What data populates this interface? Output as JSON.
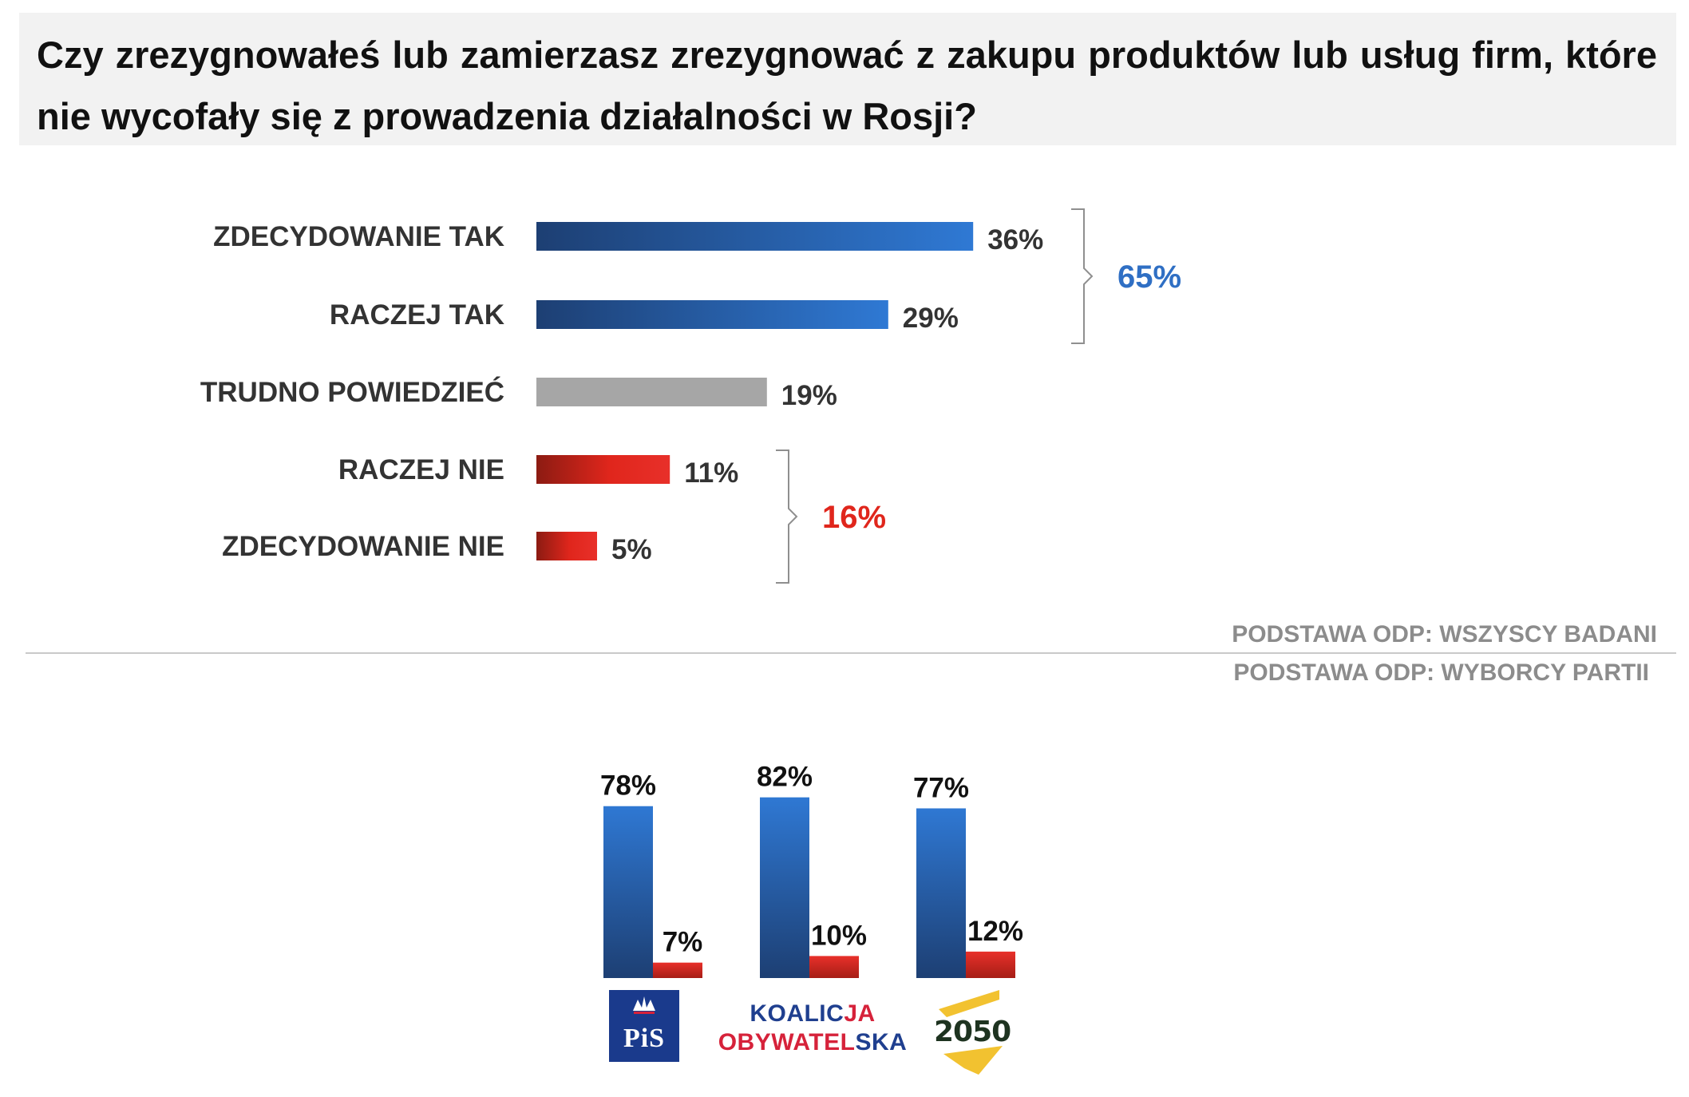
{
  "title": "Czy zrezygnowałeś lub zamierzasz zrezygnować z zakupu produktów lub usług firm, które nie wycofały się z prowadzenia działalności w Rosji?",
  "chart_data": [
    {
      "type": "bar",
      "orientation": "horizontal",
      "categories": [
        "ZDECYDOWANIE TAK",
        "RACZEJ TAK",
        "TRUDNO POWIEDZIEĆ",
        "RACZEJ NIE",
        "ZDECYDOWANIE NIE"
      ],
      "values": [
        36,
        29,
        19,
        11,
        5
      ],
      "value_labels": [
        "36%",
        "29%",
        "19%",
        "11%",
        "5%"
      ],
      "bar_colors": [
        "#2f6fc4",
        "#2f6fc4",
        "#a6a6a6",
        "#e0261c",
        "#e0261c"
      ],
      "groups": [
        {
          "categories": [
            "ZDECYDOWANIE TAK",
            "RACZEJ TAK"
          ],
          "total": "65%",
          "color": "#2f6fc4"
        },
        {
          "categories": [
            "RACZEJ NIE",
            "ZDECYDOWANIE NIE"
          ],
          "total": "16%",
          "color": "#e0261c"
        }
      ],
      "base_note": "PODSTAWA ODP: WSZYSCY BADANI"
    },
    {
      "type": "bar",
      "orientation": "vertical",
      "categories": [
        "PiS",
        "KOALICJA OBYWATELSKA",
        "2050"
      ],
      "series": [
        {
          "values": [
            78,
            82,
            77
          ],
          "labels": [
            "78%",
            "82%",
            "77%"
          ],
          "color": "#2f6fc4"
        },
        {
          "values": [
            7,
            10,
            12
          ],
          "labels": [
            "7%",
            "10%",
            "12%"
          ],
          "color": "#e0261c"
        }
      ],
      "base_note": "PODSTAWA ODP: WYBORCY PARTII"
    }
  ],
  "logos": {
    "pis": "PiS",
    "ko_line1_a": "KOALIC",
    "ko_line1_b": "JA",
    "ko_line2_a": "OBYWATEL",
    "ko_line2_b": "SKA",
    "polska2050": "2050"
  }
}
